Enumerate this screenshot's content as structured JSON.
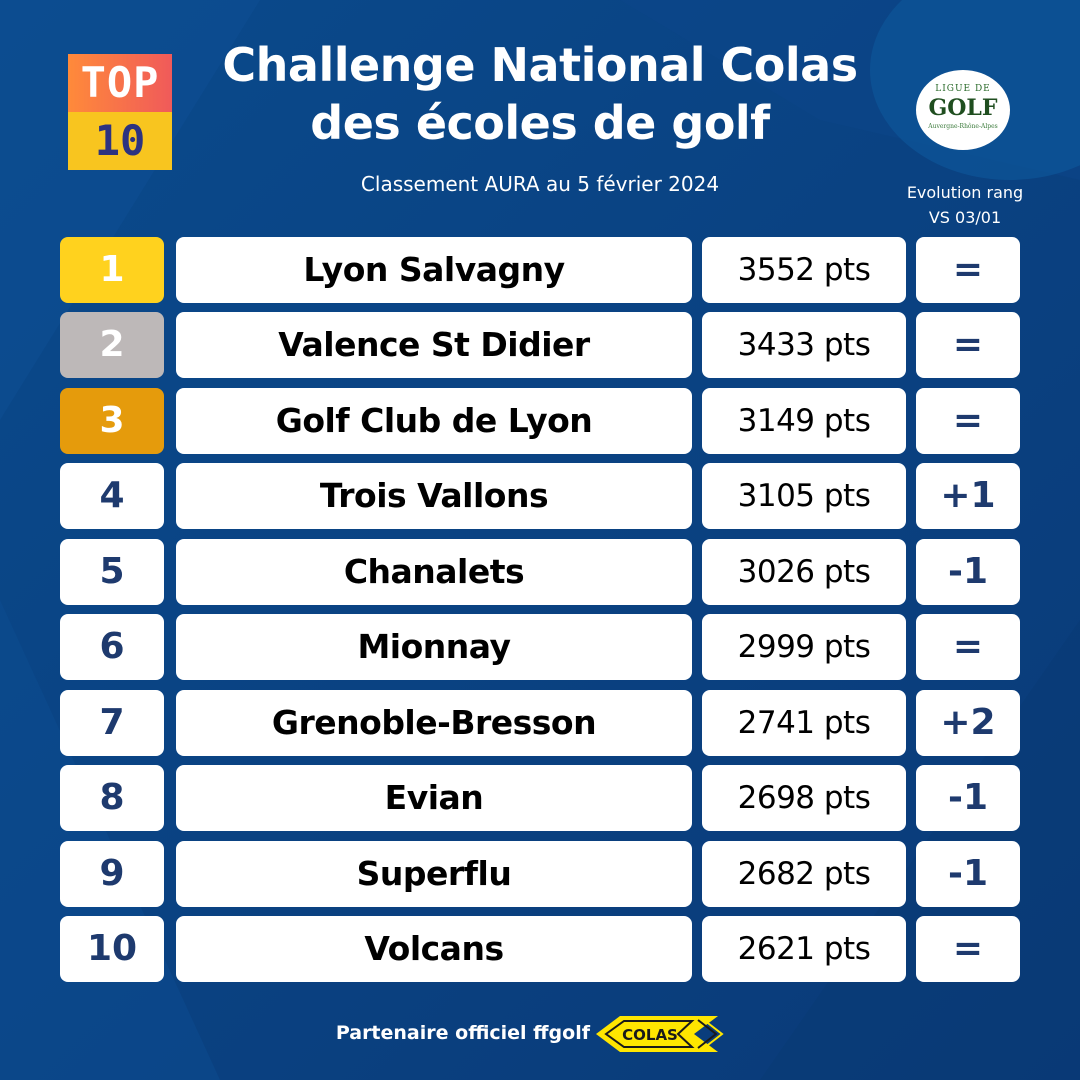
{
  "badge": {
    "top": "TOP",
    "number": "10"
  },
  "title": {
    "line1": "Challenge National Colas",
    "line2": "des écoles de golf"
  },
  "subtitle": "Classement AURA au 5 février 2024",
  "logo": {
    "line1": "LIGUE DE",
    "line2": "GOLF",
    "line3": "Auvergne-Rhône-Alpes"
  },
  "evolution_label": {
    "line1": "Evolution rang",
    "line2": "VS 03/01"
  },
  "rows": [
    {
      "rank": "1",
      "club": "Lyon Salvagny",
      "points": "3552 pts",
      "evolution": "="
    },
    {
      "rank": "2",
      "club": "Valence St Didier",
      "points": "3433 pts",
      "evolution": "="
    },
    {
      "rank": "3",
      "club": "Golf Club de Lyon",
      "points": "3149 pts",
      "evolution": "="
    },
    {
      "rank": "4",
      "club": "Trois Vallons",
      "points": "3105 pts",
      "evolution": "+1"
    },
    {
      "rank": "5",
      "club": "Chanalets",
      "points": "3026 pts",
      "evolution": "-1"
    },
    {
      "rank": "6",
      "club": "Mionnay",
      "points": "2999 pts",
      "evolution": "="
    },
    {
      "rank": "7",
      "club": "Grenoble-Bresson",
      "points": "2741 pts",
      "evolution": "+2"
    },
    {
      "rank": "8",
      "club": "Evian",
      "points": "2698 pts",
      "evolution": "-1"
    },
    {
      "rank": "9",
      "club": "Superflu",
      "points": "2682 pts",
      "evolution": "-1"
    },
    {
      "rank": "10",
      "club": "Volcans",
      "points": "2621 pts",
      "evolution": "="
    }
  ],
  "footer": {
    "text": "Partenaire officiel ffgolf",
    "sponsor_logo": "COLAS"
  },
  "colors": {
    "background": "#0b3f80",
    "gold": "#ffd21e",
    "silver": "#bdb8b8",
    "bronze": "#e59b0c",
    "rank_text": "#1e3a6e",
    "colas_yellow": "#ffe600"
  }
}
